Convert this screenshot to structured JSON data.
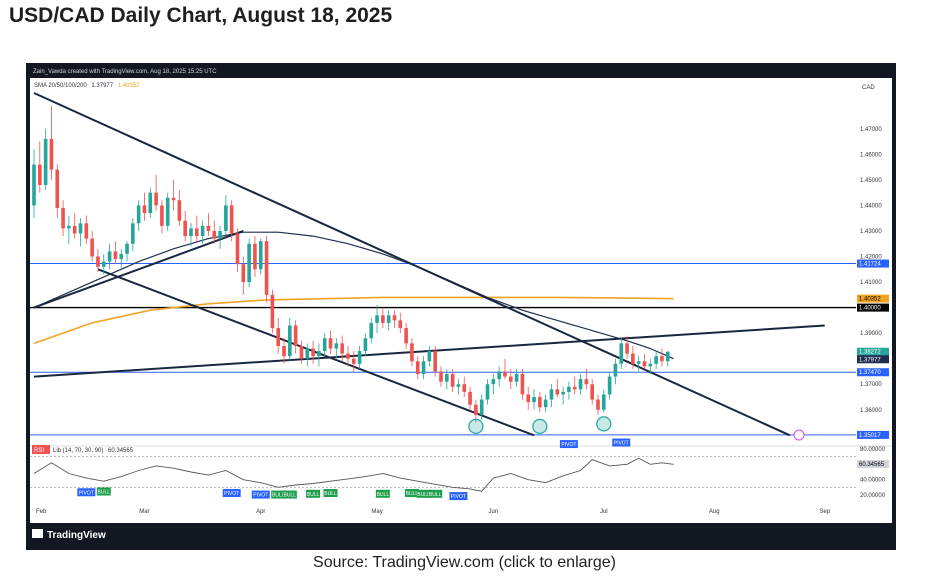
{
  "page": {
    "title": "USD/CAD Daily Chart, August 18, 2025",
    "source": "Source: TradingView.com (click to enlarge)"
  },
  "chart_header": {
    "created_by": "Zain_Vawda created with TradingView.com, Aug 18, 2025 15:25 UTC",
    "sma_label": "SMA 20/50/100/200",
    "sma_value_1": "1.37977",
    "sma_value_2": "1.40352",
    "currency": "CAD"
  },
  "brand": {
    "logo_text": "TradingView"
  },
  "rsi_label": {
    "name": "RSI",
    "params": "Lib (14, 70, 30, 90)",
    "value": "60.34565"
  },
  "colors": {
    "background": "#ffffff",
    "candle_up": "#26a69a",
    "candle_down": "#ef5350",
    "sma_100": "#1f2d4f",
    "sma_200": "#f0a422",
    "support_blue": "#2962ff",
    "trendline": "#1a2740",
    "pivot_label": "#2962ff",
    "bull_label": "#1e9e4a",
    "rsi_line": "#555555"
  },
  "chart_data": {
    "type": "candlestick",
    "title": "USD/CAD Daily Chart, August 18, 2025",
    "x_axis_labels": [
      "Feb",
      "Mar",
      "Apr",
      "May",
      "Jun",
      "Jul",
      "Aug",
      "Sep"
    ],
    "price_axis_labels": [
      "1.47000",
      "1.46000",
      "1.45000",
      "1.44000",
      "1.43000",
      "1.42000",
      "1.41000",
      "1.39000",
      "1.37000",
      "1.36000"
    ],
    "price_range": [
      1.347,
      1.484
    ],
    "horizontal_levels": [
      {
        "value": 1.41724,
        "label": "1.41724",
        "color": "#2962ff"
      },
      {
        "value": 1.4,
        "label": "1.40000",
        "color": "#000000"
      },
      {
        "value": 1.3747,
        "label": "1.37470",
        "color": "#2962ff"
      },
      {
        "value": 1.35017,
        "label": "1.35017",
        "color": "#2962ff"
      }
    ],
    "price_badges": [
      {
        "value": 1.40352,
        "label": "1.40352",
        "color": "#f0a422"
      },
      {
        "value": 1.38272,
        "label": "1.38272",
        "color": "#26a69a"
      },
      {
        "value": 1.37977,
        "label": "1.37977",
        "color": "#1f2d4f"
      }
    ],
    "trendlines": [
      {
        "name": "channel-upper",
        "from": [
          0,
          1.484
        ],
        "to": [
          130,
          1.35
        ]
      },
      {
        "name": "channel-lower",
        "from": [
          11,
          1.415
        ],
        "to": [
          86,
          1.35
        ]
      },
      {
        "name": "rising-line",
        "from": [
          0,
          1.373
        ],
        "to": [
          136,
          1.393
        ]
      },
      {
        "name": "support-wedge",
        "from": [
          0,
          1.4
        ],
        "to": [
          36,
          1.43
        ]
      }
    ],
    "candles": [
      [
        1.44,
        1.462,
        1.435,
        1.456
      ],
      [
        1.456,
        1.465,
        1.445,
        1.448
      ],
      [
        1.448,
        1.47,
        1.446,
        1.466
      ],
      [
        1.466,
        1.479,
        1.45,
        1.454
      ],
      [
        1.454,
        1.456,
        1.435,
        1.439
      ],
      [
        1.439,
        1.442,
        1.428,
        1.431
      ],
      [
        1.431,
        1.436,
        1.425,
        1.432
      ],
      [
        1.432,
        1.437,
        1.427,
        1.429
      ],
      [
        1.429,
        1.435,
        1.424,
        1.433
      ],
      [
        1.433,
        1.436,
        1.425,
        1.427
      ],
      [
        1.427,
        1.43,
        1.418,
        1.42
      ],
      [
        1.42,
        1.423,
        1.414,
        1.416
      ],
      [
        1.416,
        1.421,
        1.413,
        1.418
      ],
      [
        1.418,
        1.425,
        1.415,
        1.422
      ],
      [
        1.422,
        1.426,
        1.417,
        1.419
      ],
      [
        1.419,
        1.423,
        1.415,
        1.421
      ],
      [
        1.421,
        1.426,
        1.418,
        1.425
      ],
      [
        1.425,
        1.435,
        1.422,
        1.433
      ],
      [
        1.433,
        1.442,
        1.43,
        1.44
      ],
      [
        1.44,
        1.445,
        1.434,
        1.437
      ],
      [
        1.437,
        1.447,
        1.435,
        1.445
      ],
      [
        1.445,
        1.452,
        1.438,
        1.44
      ],
      [
        1.44,
        1.442,
        1.429,
        1.432
      ],
      [
        1.432,
        1.445,
        1.43,
        1.443
      ],
      [
        1.443,
        1.45,
        1.438,
        1.442
      ],
      [
        1.442,
        1.446,
        1.432,
        1.434
      ],
      [
        1.434,
        1.438,
        1.426,
        1.428
      ],
      [
        1.428,
        1.433,
        1.424,
        1.431
      ],
      [
        1.431,
        1.436,
        1.426,
        1.428
      ],
      [
        1.428,
        1.434,
        1.425,
        1.432
      ],
      [
        1.432,
        1.437,
        1.428,
        1.43
      ],
      [
        1.43,
        1.434,
        1.425,
        1.427
      ],
      [
        1.427,
        1.432,
        1.423,
        1.43
      ],
      [
        1.43,
        1.444,
        1.428,
        1.44
      ],
      [
        1.44,
        1.442,
        1.426,
        1.429
      ],
      [
        1.429,
        1.431,
        1.414,
        1.417
      ],
      [
        1.417,
        1.42,
        1.405,
        1.41
      ],
      [
        1.41,
        1.427,
        1.408,
        1.425
      ],
      [
        1.425,
        1.428,
        1.412,
        1.415
      ],
      [
        1.415,
        1.427,
        1.413,
        1.426
      ],
      [
        1.426,
        1.428,
        1.402,
        1.405
      ],
      [
        1.405,
        1.407,
        1.39,
        1.392
      ],
      [
        1.392,
        1.396,
        1.382,
        1.385
      ],
      [
        1.385,
        1.388,
        1.378,
        1.381
      ],
      [
        1.381,
        1.396,
        1.379,
        1.393
      ],
      [
        1.393,
        1.395,
        1.382,
        1.385
      ],
      [
        1.385,
        1.387,
        1.378,
        1.38
      ],
      [
        1.38,
        1.386,
        1.377,
        1.384
      ],
      [
        1.384,
        1.387,
        1.378,
        1.381
      ],
      [
        1.381,
        1.386,
        1.377,
        1.383
      ],
      [
        1.383,
        1.39,
        1.381,
        1.388
      ],
      [
        1.388,
        1.391,
        1.382,
        1.384
      ],
      [
        1.384,
        1.388,
        1.38,
        1.386
      ],
      [
        1.386,
        1.389,
        1.379,
        1.382
      ],
      [
        1.382,
        1.385,
        1.377,
        1.38
      ],
      [
        1.38,
        1.383,
        1.375,
        1.378
      ],
      [
        1.378,
        1.385,
        1.376,
        1.383
      ],
      [
        1.383,
        1.39,
        1.381,
        1.388
      ],
      [
        1.388,
        1.396,
        1.386,
        1.394
      ],
      [
        1.394,
        1.401,
        1.39,
        1.397
      ],
      [
        1.397,
        1.4,
        1.392,
        1.394
      ],
      [
        1.394,
        1.399,
        1.391,
        1.397
      ],
      [
        1.397,
        1.399,
        1.392,
        1.395
      ],
      [
        1.395,
        1.398,
        1.39,
        1.392
      ],
      [
        1.392,
        1.394,
        1.384,
        1.386
      ],
      [
        1.386,
        1.388,
        1.377,
        1.379
      ],
      [
        1.379,
        1.381,
        1.372,
        1.374
      ],
      [
        1.374,
        1.381,
        1.372,
        1.379
      ],
      [
        1.379,
        1.385,
        1.377,
        1.383
      ],
      [
        1.383,
        1.385,
        1.373,
        1.375
      ],
      [
        1.375,
        1.377,
        1.369,
        1.371
      ],
      [
        1.371,
        1.376,
        1.368,
        1.374
      ],
      [
        1.374,
        1.376,
        1.367,
        1.369
      ],
      [
        1.369,
        1.372,
        1.366,
        1.37
      ],
      [
        1.37,
        1.373,
        1.365,
        1.367
      ],
      [
        1.367,
        1.369,
        1.36,
        1.362
      ],
      [
        1.362,
        1.364,
        1.355,
        1.358
      ],
      [
        1.358,
        1.366,
        1.356,
        1.364
      ],
      [
        1.364,
        1.372,
        1.362,
        1.37
      ],
      [
        1.37,
        1.374,
        1.366,
        1.372
      ],
      [
        1.372,
        1.377,
        1.369,
        1.375
      ],
      [
        1.375,
        1.38,
        1.372,
        1.373
      ],
      [
        1.373,
        1.376,
        1.368,
        1.371
      ],
      [
        1.371,
        1.376,
        1.369,
        1.374
      ],
      [
        1.374,
        1.376,
        1.364,
        1.366
      ],
      [
        1.366,
        1.369,
        1.36,
        1.363
      ],
      [
        1.363,
        1.368,
        1.36,
        1.365
      ],
      [
        1.365,
        1.367,
        1.359,
        1.361
      ],
      [
        1.361,
        1.366,
        1.359,
        1.364
      ],
      [
        1.364,
        1.37,
        1.361,
        1.368
      ],
      [
        1.368,
        1.372,
        1.365,
        1.366
      ],
      [
        1.366,
        1.369,
        1.362,
        1.367
      ],
      [
        1.367,
        1.371,
        1.364,
        1.369
      ],
      [
        1.369,
        1.373,
        1.366,
        1.368
      ],
      [
        1.368,
        1.374,
        1.366,
        1.372
      ],
      [
        1.372,
        1.376,
        1.368,
        1.37
      ],
      [
        1.37,
        1.372,
        1.362,
        1.364
      ],
      [
        1.364,
        1.366,
        1.358,
        1.36
      ],
      [
        1.36,
        1.368,
        1.359,
        1.366
      ],
      [
        1.366,
        1.375,
        1.364,
        1.373
      ],
      [
        1.373,
        1.38,
        1.37,
        1.378
      ],
      [
        1.378,
        1.388,
        1.376,
        1.386
      ],
      [
        1.386,
        1.389,
        1.38,
        1.382
      ],
      [
        1.382,
        1.385,
        1.376,
        1.378
      ],
      [
        1.378,
        1.381,
        1.375,
        1.379
      ],
      [
        1.379,
        1.382,
        1.376,
        1.377
      ],
      [
        1.377,
        1.38,
        1.374,
        1.378
      ],
      [
        1.378,
        1.383,
        1.376,
        1.381
      ],
      [
        1.381,
        1.384,
        1.377,
        1.379
      ],
      [
        1.379,
        1.383,
        1.377,
        1.3827
      ]
    ],
    "candle_x_positions": [
      0,
      1,
      2,
      3,
      4,
      5,
      6,
      7,
      8,
      9,
      10,
      11,
      12,
      13,
      14,
      15,
      16,
      17,
      18,
      19,
      20,
      21,
      22,
      23,
      24,
      25,
      26,
      27,
      28,
      29,
      30,
      31,
      32,
      33,
      34,
      35,
      36,
      37,
      38,
      39,
      40,
      41,
      42,
      43,
      44,
      45,
      46,
      47,
      48,
      49,
      50,
      51,
      52,
      53,
      54,
      55,
      56,
      57,
      58,
      59,
      60,
      61,
      62,
      63,
      64,
      65,
      66,
      67,
      68,
      69,
      70,
      71,
      72,
      73,
      74,
      75,
      76,
      77,
      78,
      79,
      80,
      81,
      82,
      83,
      84,
      85,
      86,
      87,
      88,
      89,
      90,
      91,
      92,
      93,
      94,
      95,
      96,
      97,
      98,
      99,
      100,
      101,
      102,
      103,
      104,
      105,
      106,
      107,
      108,
      109
    ],
    "x_index_range": [
      0,
      140
    ],
    "sma_100": [
      [
        0,
        1.4
      ],
      [
        6,
        1.406
      ],
      [
        12,
        1.412
      ],
      [
        18,
        1.418
      ],
      [
        24,
        1.423
      ],
      [
        30,
        1.427
      ],
      [
        36,
        1.4295
      ],
      [
        42,
        1.4295
      ],
      [
        48,
        1.428
      ],
      [
        54,
        1.425
      ],
      [
        60,
        1.421
      ],
      [
        66,
        1.416
      ],
      [
        72,
        1.41
      ],
      [
        78,
        1.404
      ],
      [
        84,
        1.399
      ],
      [
        90,
        1.395
      ],
      [
        96,
        1.391
      ],
      [
        102,
        1.387
      ],
      [
        106,
        1.384
      ],
      [
        110,
        1.38
      ]
    ],
    "sma_200": [
      [
        0,
        1.386
      ],
      [
        10,
        1.394
      ],
      [
        20,
        1.399
      ],
      [
        30,
        1.4015
      ],
      [
        40,
        1.403
      ],
      [
        50,
        1.4035
      ],
      [
        60,
        1.404
      ],
      [
        70,
        1.404
      ],
      [
        80,
        1.404
      ],
      [
        90,
        1.404
      ],
      [
        100,
        1.4038
      ],
      [
        110,
        1.4035
      ]
    ],
    "circles": [
      {
        "x": 76,
        "price": 1.3535
      },
      {
        "x": 87,
        "price": 1.3535
      },
      {
        "x": 98,
        "price": 1.3545
      }
    ],
    "rsi": {
      "range": [
        20,
        80
      ],
      "axis_labels": [
        "80.00000",
        "40.00000",
        "20.00000"
      ],
      "value_label": "60.34565",
      "levels": [
        70,
        30
      ],
      "values": [
        [
          0,
          48
        ],
        [
          3,
          62
        ],
        [
          6,
          48
        ],
        [
          9,
          42
        ],
        [
          12,
          38
        ],
        [
          15,
          44
        ],
        [
          18,
          52
        ],
        [
          21,
          58
        ],
        [
          24,
          55
        ],
        [
          27,
          50
        ],
        [
          30,
          46
        ],
        [
          33,
          52
        ],
        [
          36,
          40
        ],
        [
          39,
          36
        ],
        [
          42,
          30
        ],
        [
          45,
          33
        ],
        [
          48,
          35
        ],
        [
          51,
          38
        ],
        [
          54,
          41
        ],
        [
          57,
          44
        ],
        [
          60,
          48
        ],
        [
          63,
          42
        ],
        [
          66,
          38
        ],
        [
          69,
          34
        ],
        [
          72,
          30
        ],
        [
          75,
          28
        ],
        [
          77,
          25
        ],
        [
          79,
          42
        ],
        [
          82,
          48
        ],
        [
          85,
          40
        ],
        [
          88,
          36
        ],
        [
          91,
          45
        ],
        [
          94,
          52
        ],
        [
          96,
          66
        ],
        [
          99,
          58
        ],
        [
          102,
          60
        ],
        [
          104,
          68
        ],
        [
          106,
          60
        ],
        [
          108,
          62
        ],
        [
          110,
          60
        ]
      ]
    },
    "markers": [
      {
        "type": "PIVOT",
        "x": 9,
        "rsi": 34
      },
      {
        "type": "BULL",
        "x": 12,
        "rsi": 35
      },
      {
        "type": "PIVOT",
        "x": 34,
        "rsi": 33
      },
      {
        "type": "PIVOT",
        "x": 39,
        "rsi": 31
      },
      {
        "type": "BULL",
        "x": 42,
        "rsi": 31
      },
      {
        "type": "BULL",
        "x": 44,
        "rsi": 31
      },
      {
        "type": "BULL",
        "x": 48,
        "rsi": 32
      },
      {
        "type": "BULL",
        "x": 51,
        "rsi": 33
      },
      {
        "type": "BULL",
        "x": 60,
        "rsi": 32
      },
      {
        "type": "BULL",
        "x": 65,
        "rsi": 33
      },
      {
        "type": "BULL",
        "x": 67,
        "rsi": 32
      },
      {
        "type": "BULL",
        "x": 69,
        "rsi": 32
      },
      {
        "type": "PIVOT",
        "x": 73,
        "rsi": 29
      },
      {
        "type": "PIVOT",
        "x": 92,
        "rsi": 76
      },
      {
        "type": "PIVOT",
        "x": 101,
        "rsi": 78
      }
    ]
  }
}
